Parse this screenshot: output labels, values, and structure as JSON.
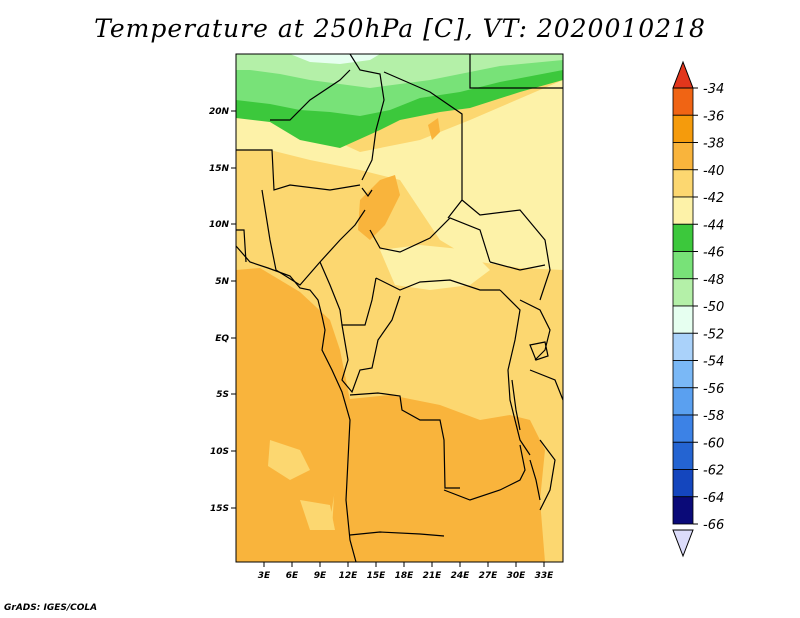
{
  "title": "Temperature at 250hPa [C], VT: 2020010218",
  "credit": "GrADS: IGES/COLA",
  "axes": {
    "lat_ticks": [
      "20N",
      "15N",
      "10N",
      "5N",
      "EQ",
      "5S",
      "10S",
      "15S"
    ],
    "lon_ticks": [
      "3E",
      "6E",
      "9E",
      "12E",
      "15E",
      "18E",
      "21E",
      "24E",
      "27E",
      "30E",
      "33E"
    ]
  },
  "legend": {
    "levels": [
      "-34",
      "-36",
      "-38",
      "-40",
      "-42",
      "-44",
      "-46",
      "-48",
      "-50",
      "-52",
      "-54",
      "-56",
      "-58",
      "-60",
      "-62",
      "-64",
      "-66"
    ],
    "colors": [
      "#e2361c",
      "#f06414",
      "#f59b0c",
      "#f9b43c",
      "#fcd770",
      "#fdf2a8",
      "#3cc83c",
      "#78e278",
      "#b4f0a8",
      "#e6fff0",
      "#aad2fa",
      "#7ab8f6",
      "#5aa0f0",
      "#3c82e6",
      "#2464d2",
      "#1446be",
      "#0a0a78",
      "#dcdcfa"
    ]
  }
}
